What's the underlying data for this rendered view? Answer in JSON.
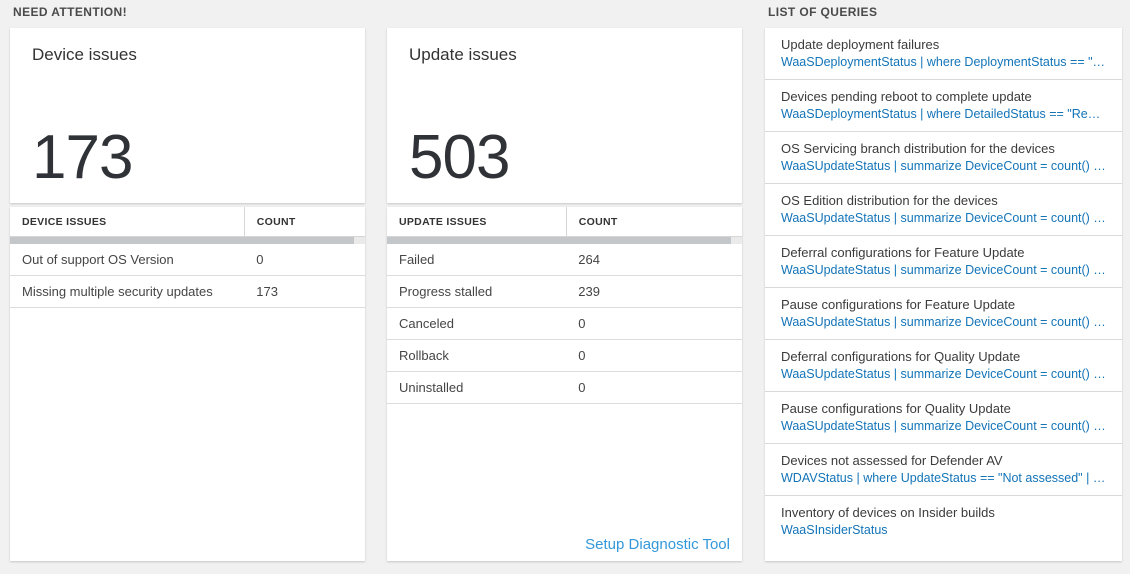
{
  "colors": {
    "query_blue": "#1374b8",
    "link_blue": "#3398da",
    "page_background": "#f1f1f1"
  },
  "need_attention": {
    "section_title": "NEED ATTENTION!",
    "device_card": {
      "title": "Device issues",
      "count": "173",
      "table": {
        "headers": [
          "DEVICE ISSUES",
          "COUNT"
        ],
        "rows": [
          {
            "label": "Out of support OS Version",
            "count": "0"
          },
          {
            "label": "Missing multiple security updates",
            "count": "173"
          }
        ]
      }
    },
    "update_card": {
      "title": "Update issues",
      "count": "503",
      "table": {
        "headers": [
          "UPDATE ISSUES",
          "COUNT"
        ],
        "rows": [
          {
            "label": "Failed",
            "count": "264"
          },
          {
            "label": "Progress stalled",
            "count": "239"
          },
          {
            "label": "Canceled",
            "count": "0"
          },
          {
            "label": "Rollback",
            "count": "0"
          },
          {
            "label": "Uninstalled",
            "count": "0"
          }
        ]
      },
      "footer_link": "Setup Diagnostic Tool"
    }
  },
  "queries_panel": {
    "section_title": "LIST OF QUERIES",
    "items": [
      {
        "title": "Update deployment failures",
        "query": "WaaSDeploymentStatus | where DeploymentStatus == \"Failed\" |..."
      },
      {
        "title": "Devices pending reboot to complete update",
        "query": "WaaSDeploymentStatus | where DetailedStatus == \"Reboot pend..."
      },
      {
        "title": "OS Servicing branch distribution for the devices",
        "query": "WaaSUpdateStatus | summarize DeviceCount = count() by OSSer..."
      },
      {
        "title": "OS Edition distribution for the devices",
        "query": "WaaSUpdateStatus | summarize DeviceCount = count() by OSEdit..."
      },
      {
        "title": "Deferral configurations for Feature Update",
        "query": "WaaSUpdateStatus | summarize DeviceCount = count() by Featur..."
      },
      {
        "title": "Pause configurations for Feature Update",
        "query": "WaaSUpdateStatus | summarize DeviceCount = count() by Featur..."
      },
      {
        "title": "Deferral configurations for Quality Update",
        "query": "WaaSUpdateStatus | summarize DeviceCount = count() by Qualit..."
      },
      {
        "title": "Pause configurations for Quality Update",
        "query": "WaaSUpdateStatus | summarize DeviceCount = count() by Qualit..."
      },
      {
        "title": "Devices not assessed for Defender AV",
        "query": "WDAVStatus | where UpdateStatus == \"Not assessed\" | render ta..."
      },
      {
        "title": "Inventory of devices on Insider builds",
        "query": "WaaSInsiderStatus"
      }
    ]
  }
}
